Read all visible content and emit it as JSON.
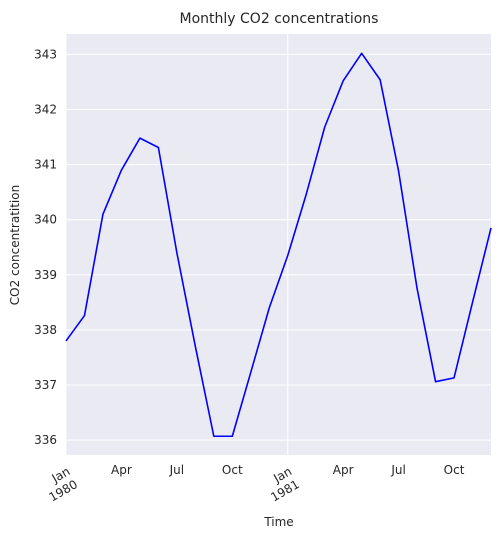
{
  "chart_data": {
    "type": "line",
    "title": "Monthly CO2 concentrations",
    "xlabel": "Time",
    "ylabel": "CO2 concentratition",
    "x": [
      "1980-01",
      "1980-02",
      "1980-03",
      "1980-04",
      "1980-05",
      "1980-06",
      "1980-07",
      "1980-08",
      "1980-09",
      "1980-10",
      "1980-11",
      "1980-12",
      "1981-01",
      "1981-02",
      "1981-03",
      "1981-04",
      "1981-05",
      "1981-06",
      "1981-07",
      "1981-08",
      "1981-09",
      "1981-10",
      "1981-11",
      "1981-12"
    ],
    "series": [
      {
        "values": [
          337.8,
          338.26,
          340.1,
          340.9,
          341.48,
          341.31,
          339.4,
          337.7,
          336.07,
          336.07,
          337.23,
          338.4,
          339.35,
          340.46,
          341.68,
          342.52,
          343.02,
          342.54,
          340.88,
          338.75,
          337.06,
          337.13,
          338.5,
          339.85
        ],
        "color": "#0000ff"
      }
    ],
    "ylim": [
      335.73,
      343.37
    ],
    "yticks": [
      "336",
      "337",
      "338",
      "339",
      "340",
      "341",
      "342",
      "343"
    ],
    "xticks": [
      {
        "month": "Jan",
        "year": "1980"
      },
      {
        "month": "Apr",
        "year": ""
      },
      {
        "month": "Jul",
        "year": ""
      },
      {
        "month": "Oct",
        "year": ""
      },
      {
        "month": "Jan",
        "year": "1981"
      },
      {
        "month": "Apr",
        "year": ""
      },
      {
        "month": "Jul",
        "year": ""
      },
      {
        "month": "Oct",
        "year": ""
      }
    ],
    "grid": true,
    "background": "#eaeaf2"
  }
}
